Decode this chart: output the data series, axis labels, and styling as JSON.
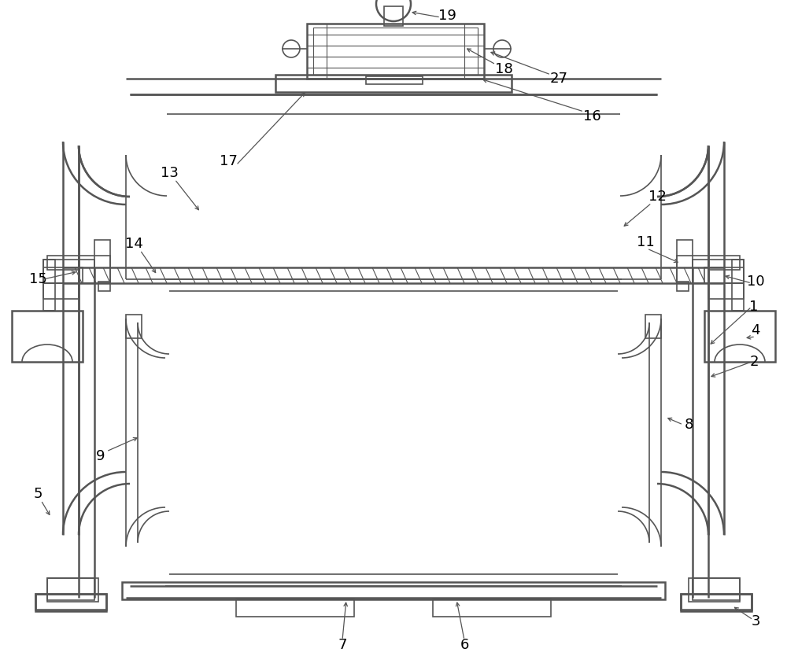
{
  "bg_color": "#ffffff",
  "lc": "#555555",
  "lw": 1.2,
  "lw2": 1.8,
  "lw3": 2.2
}
